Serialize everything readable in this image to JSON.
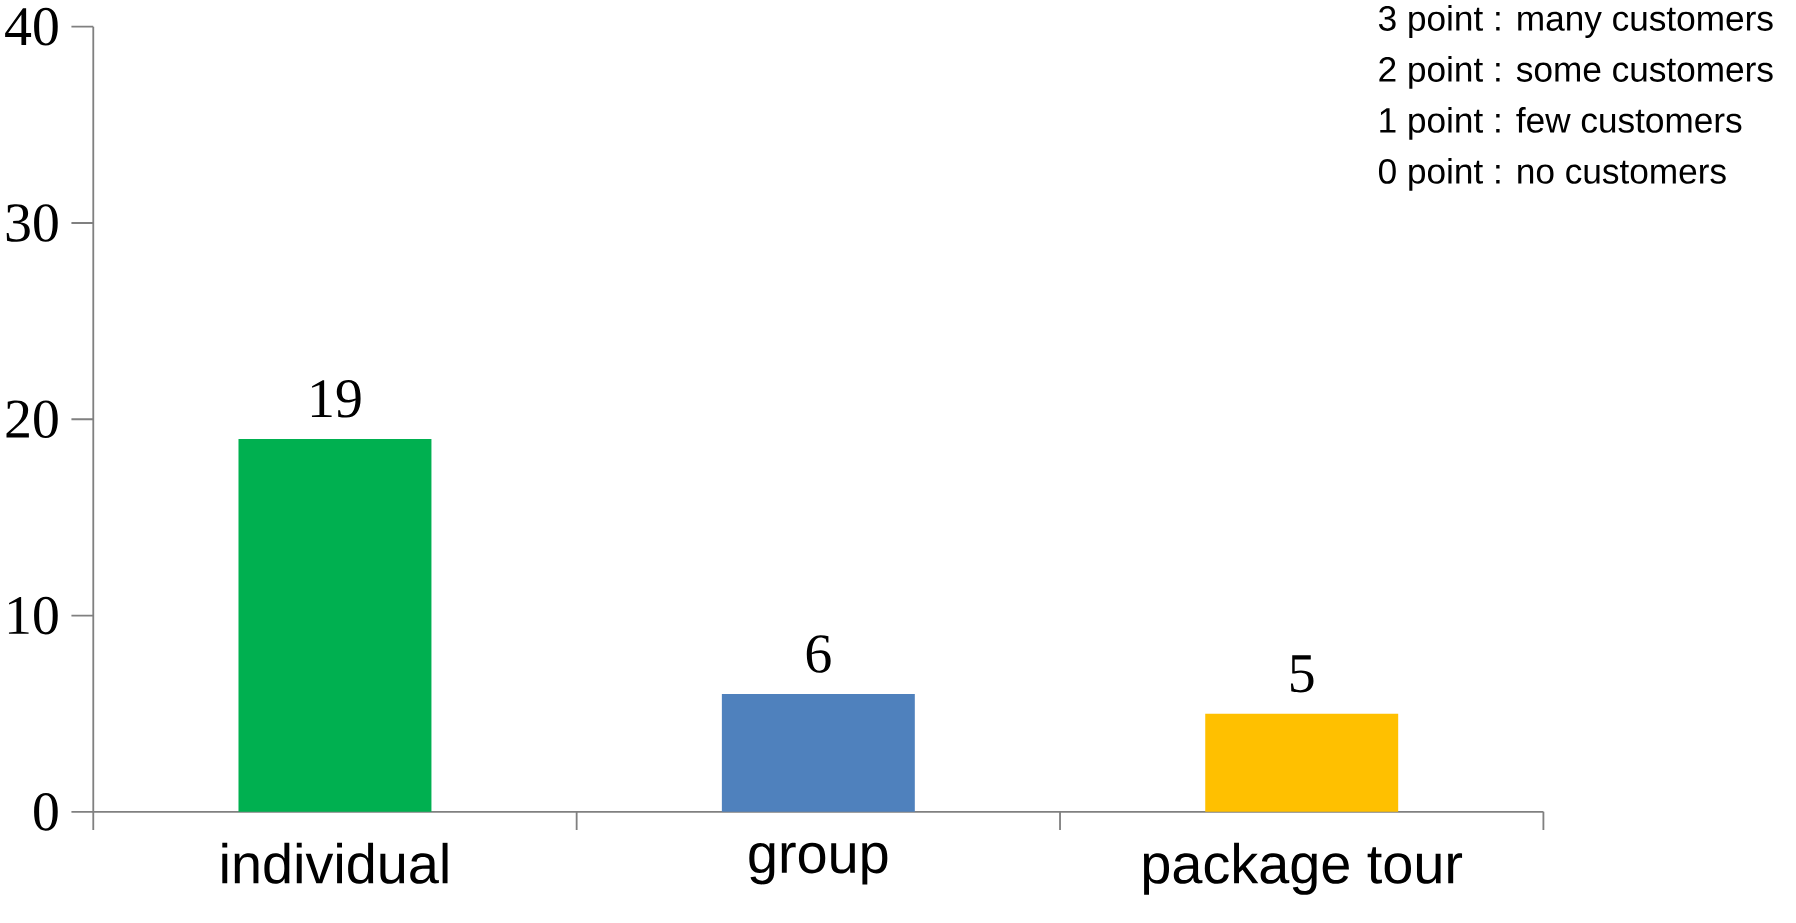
{
  "chart_data": {
    "type": "bar",
    "categories": [
      "individual",
      "group",
      "package tour"
    ],
    "values": [
      19,
      6,
      5
    ],
    "colors": [
      "#00b050",
      "#4f81bd",
      "#ffc000"
    ],
    "ylim": [
      0,
      40
    ],
    "yticks": [
      0,
      10,
      20,
      30,
      40
    ],
    "data_labels": true,
    "annotations": [
      "3 point : many customers",
      "2 point : some customers",
      "1 point : few customers",
      "0 point : no customers"
    ]
  }
}
